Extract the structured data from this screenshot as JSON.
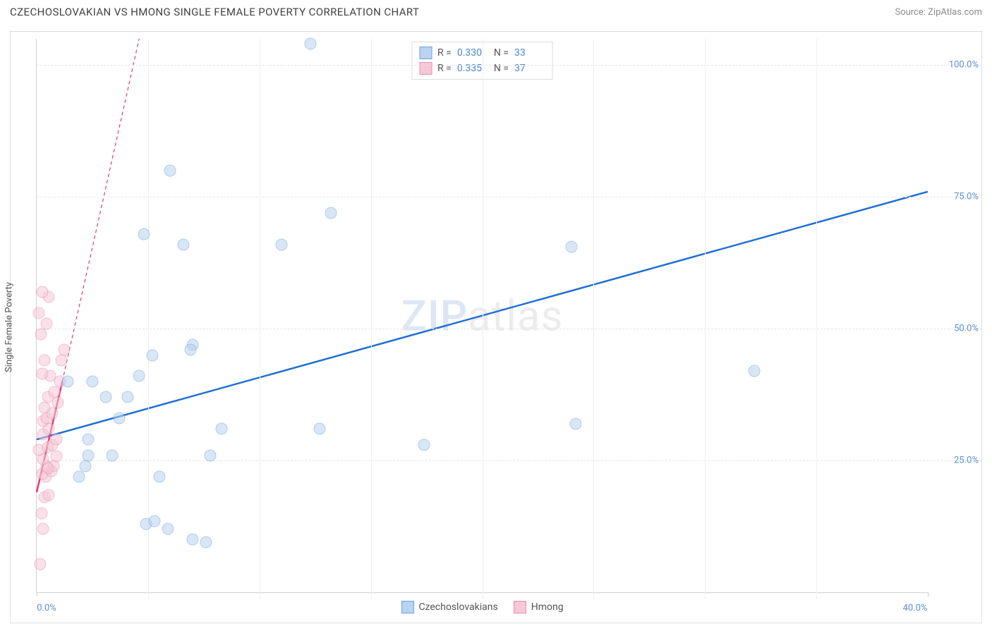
{
  "title": "CZECHOSLOVAKIAN VS HMONG SINGLE FEMALE POVERTY CORRELATION CHART",
  "source": "Source: ZipAtlas.com",
  "y_axis_label": "Single Female Poverty",
  "watermark": "ZIPatlas",
  "chart": {
    "type": "scatter",
    "background_color": "#ffffff",
    "border_color": "#e0e0e0",
    "grid_color": "#e4e4e4",
    "axis_color": "#d0d0d0",
    "tick_label_color": "#5b8fd6",
    "tick_label_fontsize": 13,
    "xlim": [
      0,
      40
    ],
    "ylim": [
      0,
      105
    ],
    "x_ticks": [
      0,
      5,
      10,
      15,
      20,
      25,
      30,
      35,
      40
    ],
    "x_tick_labels": {
      "0": "0.0%",
      "40": "40.0%"
    },
    "y_ticks": [
      25,
      50,
      75,
      100
    ],
    "y_tick_labels": {
      "25": "25.0%",
      "50": "50.0%",
      "75": "75.0%",
      "100": "100.0%"
    },
    "marker_radius": 8.5,
    "marker_opacity": 0.55,
    "marker_stroke_width": 1
  },
  "series": {
    "czech": {
      "label": "Czechoslovakians",
      "color_fill": "#b9d3f0",
      "color_stroke": "#6fa3dd",
      "trend_color": "#1f6fd4",
      "trend_width": 2.5,
      "trend_dash": "none",
      "trend_start": [
        0,
        29
      ],
      "trend_end": [
        40,
        76
      ],
      "points": [
        [
          12.3,
          104
        ],
        [
          6.0,
          80
        ],
        [
          4.8,
          68
        ],
        [
          6.6,
          66
        ],
        [
          11.0,
          66
        ],
        [
          13.2,
          72
        ],
        [
          12.7,
          31
        ],
        [
          7.8,
          26
        ],
        [
          8.3,
          31
        ],
        [
          32.2,
          42
        ],
        [
          24.0,
          65.5
        ],
        [
          24.2,
          32
        ],
        [
          5.2,
          45
        ],
        [
          7.0,
          47
        ],
        [
          2.3,
          26
        ],
        [
          3.4,
          26
        ],
        [
          2.3,
          29
        ],
        [
          3.7,
          33
        ],
        [
          3.1,
          37
        ],
        [
          2.5,
          40
        ],
        [
          4.1,
          37
        ],
        [
          4.6,
          41
        ],
        [
          2.2,
          24
        ],
        [
          5.5,
          22
        ],
        [
          1.9,
          22
        ],
        [
          4.9,
          13
        ],
        [
          5.9,
          12
        ],
        [
          7.0,
          10
        ],
        [
          7.6,
          9.5
        ],
        [
          5.3,
          13.5
        ],
        [
          6.9,
          46
        ],
        [
          1.4,
          40
        ],
        [
          17.4,
          28
        ]
      ]
    },
    "hmong": {
      "label": "Hmong",
      "color_fill": "#f6c7d6",
      "color_stroke": "#e88fb0",
      "trend_color": "#e23b77",
      "trend_width": 2.5,
      "trend_dash": "5 4",
      "trend_start": [
        0,
        19
      ],
      "trend_end": [
        4.6,
        105
      ],
      "solid_end": [
        1.15,
        40
      ],
      "points": [
        [
          0.15,
          5.3
        ],
        [
          0.3,
          12
        ],
        [
          0.22,
          15
        ],
        [
          0.35,
          18
        ],
        [
          0.55,
          18.5
        ],
        [
          0.4,
          22
        ],
        [
          0.25,
          22.5
        ],
        [
          0.65,
          23
        ],
        [
          0.45,
          24
        ],
        [
          0.75,
          24
        ],
        [
          0.3,
          25.3
        ],
        [
          0.08,
          27
        ],
        [
          0.9,
          25.8
        ],
        [
          0.5,
          27.5
        ],
        [
          0.7,
          28
        ],
        [
          0.9,
          29
        ],
        [
          0.3,
          30
        ],
        [
          0.55,
          31
        ],
        [
          0.28,
          32.5
        ],
        [
          0.45,
          33
        ],
        [
          0.7,
          34
        ],
        [
          0.35,
          35
        ],
        [
          0.95,
          36
        ],
        [
          0.5,
          37
        ],
        [
          0.8,
          38
        ],
        [
          1.05,
          40
        ],
        [
          0.6,
          41
        ],
        [
          0.25,
          41.5
        ],
        [
          1.1,
          44
        ],
        [
          0.35,
          44
        ],
        [
          1.25,
          46
        ],
        [
          0.2,
          49
        ],
        [
          0.45,
          51
        ],
        [
          0.1,
          53
        ],
        [
          0.55,
          56
        ],
        [
          0.25,
          57
        ],
        [
          0.5,
          23.5
        ]
      ]
    }
  },
  "stats_legend": {
    "rows": [
      {
        "swatch": "czech",
        "r_label": "R =",
        "r": "0.330",
        "n_label": "N =",
        "n": "33"
      },
      {
        "swatch": "hmong",
        "r_label": "R =",
        "r": "0.335",
        "n_label": "N =",
        "n": "37"
      }
    ]
  }
}
